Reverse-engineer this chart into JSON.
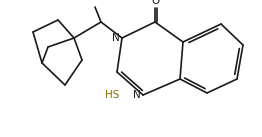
{
  "bg_color": "#ffffff",
  "line_color": "#1a1a1a",
  "line_width": 1.2,
  "figsize": [
    2.62,
    1.37
  ],
  "dpi": 100,
  "O_label": {
    "text": "O",
    "fontsize": 7.5,
    "color": "#1a1a1a"
  },
  "N3_label": {
    "text": "N",
    "fontsize": 7.5,
    "color": "#1a1a1a"
  },
  "N1_label": {
    "text": "N",
    "fontsize": 7.5,
    "color": "#1a1a1a"
  },
  "HS_label": {
    "text": "HS",
    "fontsize": 7.5,
    "color": "#8b7000"
  }
}
